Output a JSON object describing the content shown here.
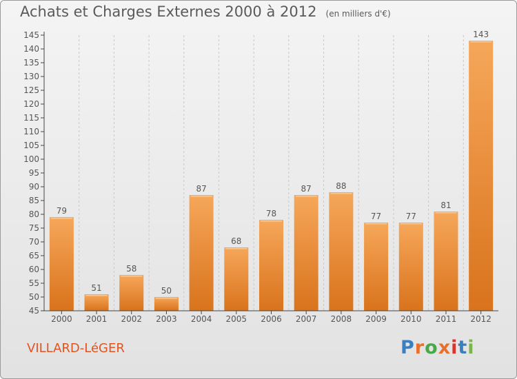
{
  "header": {
    "title": "Achats et Charges Externes 2000 à 2012",
    "unit": "(en milliers d'€)"
  },
  "footer": {
    "commune": "VILLARD-LéGER",
    "logo": "Proxiti",
    "logo_colors": [
      "#3a7fc1",
      "#e8702a",
      "#4aa84a",
      "#e8702a",
      "#d9342b",
      "#3a7fc1",
      "#7ab648"
    ]
  },
  "colors": {
    "bar_light": "#f6a75a",
    "bar_dark": "#d9731c",
    "axis": "#444444",
    "text": "#555555",
    "grid": "#c8c8c8"
  },
  "chart_data": {
    "type": "bar",
    "title": "Achats et Charges Externes 2000 à 2012",
    "subtitle": "(en milliers d'€)",
    "categories": [
      "2000",
      "2001",
      "2002",
      "2003",
      "2004",
      "2005",
      "2006",
      "2007",
      "2008",
      "2009",
      "2010",
      "2011",
      "2012"
    ],
    "values": [
      79,
      51,
      58,
      50,
      87,
      68,
      78,
      87,
      88,
      77,
      77,
      81,
      143
    ],
    "ylim": [
      45,
      145
    ],
    "yticks": [
      45,
      50,
      55,
      60,
      65,
      70,
      75,
      80,
      85,
      90,
      95,
      100,
      105,
      110,
      115,
      120,
      125,
      130,
      135,
      140,
      145
    ],
    "grid": "vertical-dashed"
  }
}
